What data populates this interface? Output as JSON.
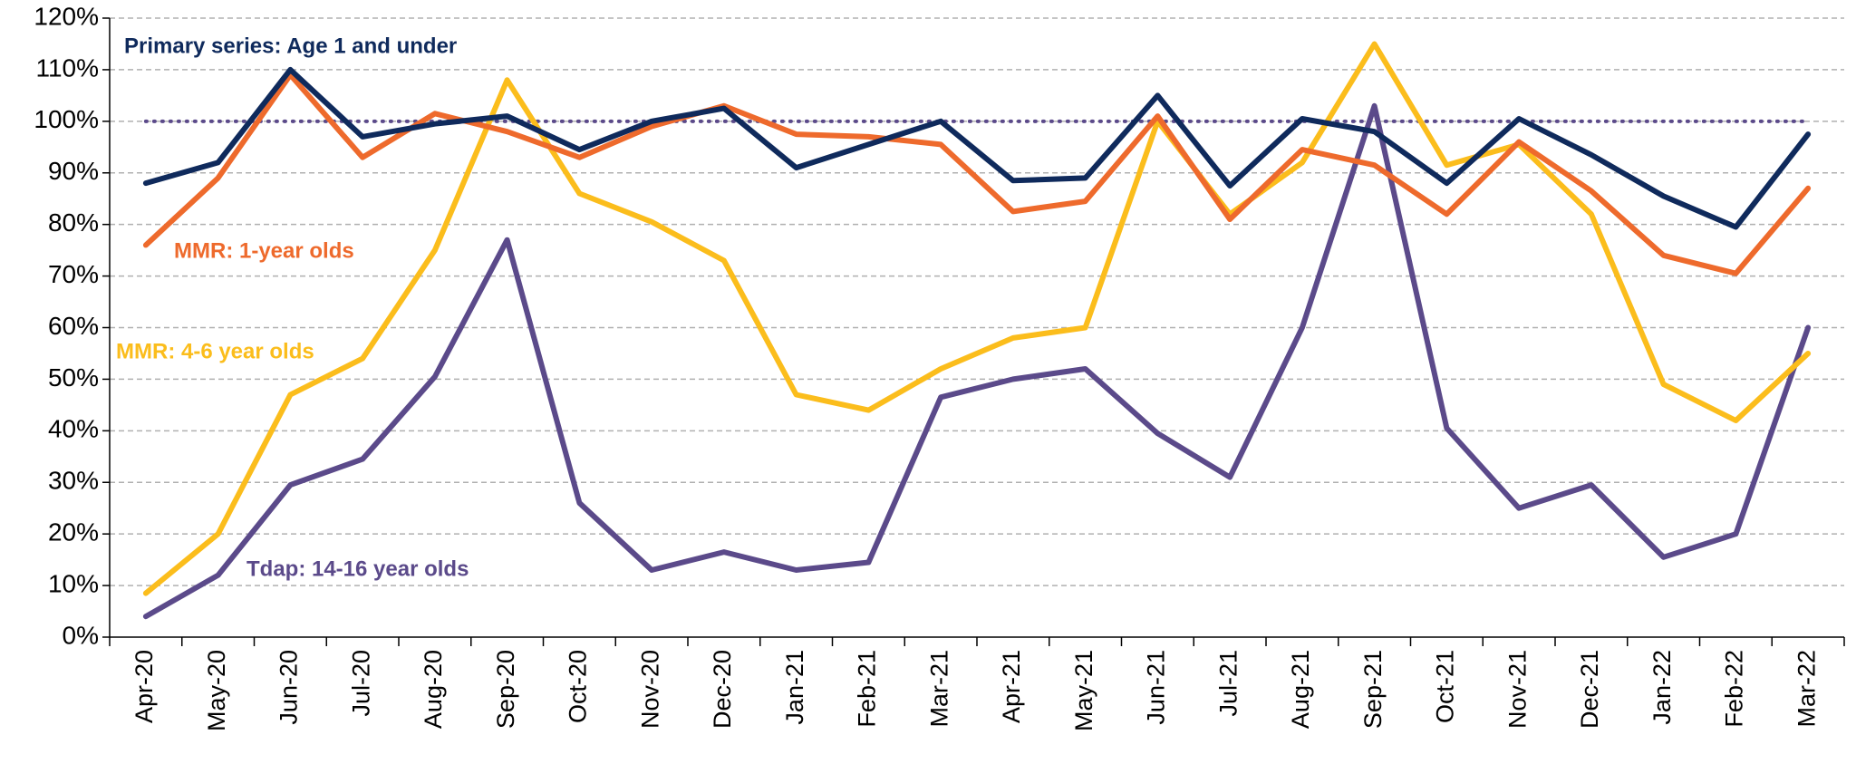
{
  "chart_data": {
    "type": "line",
    "categories": [
      "Apr-20",
      "May-20",
      "Jun-20",
      "Jul-20",
      "Aug-20",
      "Sep-20",
      "Oct-20",
      "Nov-20",
      "Dec-20",
      "Jan-21",
      "Feb-21",
      "Mar-21",
      "Apr-21",
      "May-21",
      "Jun-21",
      "Jul-21",
      "Aug-21",
      "Sep-21",
      "Oct-21",
      "Nov-21",
      "Dec-21",
      "Jan-22",
      "Feb-22",
      "Mar-22"
    ],
    "series": [
      {
        "name": "Primary series: Age 1 and under",
        "color": "#0f2a5c",
        "values": [
          88,
          92,
          110,
          97,
          99.5,
          101,
          94.5,
          100,
          102.5,
          91,
          95.5,
          100,
          88.5,
          89,
          105,
          87.5,
          100.5,
          98,
          88,
          100.5,
          93.5,
          85.5,
          79.5,
          97.5
        ]
      },
      {
        "name": "MMR: 1-year olds",
        "color": "#ee6a2c",
        "values": [
          76,
          89,
          109,
          93,
          101.5,
          98,
          93,
          99,
          103,
          97.5,
          97,
          95.5,
          82.5,
          84.5,
          101,
          81,
          94.5,
          91.5,
          82,
          96,
          86.5,
          74,
          70.5,
          87
        ]
      },
      {
        "name": "MMR: 4-6 year olds",
        "color": "#fbbd1c",
        "values": [
          8.5,
          20,
          47,
          54,
          75,
          108,
          86,
          80.5,
          73,
          47,
          44,
          52,
          58,
          60,
          100,
          82,
          92,
          115,
          91.5,
          95.5,
          82,
          49,
          42,
          55
        ]
      },
      {
        "name": "Tdap: 14-16 year olds",
        "color": "#5b4a8a",
        "values": [
          4,
          12,
          29.5,
          34.5,
          50.5,
          77,
          26,
          13,
          16.5,
          13,
          14.5,
          46.5,
          50,
          52,
          39.5,
          31,
          60,
          103,
          40.5,
          25,
          29.5,
          15.5,
          20,
          60
        ]
      }
    ],
    "reference_line": {
      "value": 100,
      "color": "#5b4a8a"
    },
    "ylim": [
      0,
      120
    ],
    "yticks": [
      {
        "value": 0,
        "label": "0%"
      },
      {
        "value": 10,
        "label": "10%"
      },
      {
        "value": 20,
        "label": "20%"
      },
      {
        "value": 30,
        "label": "30%"
      },
      {
        "value": 40,
        "label": "40%"
      },
      {
        "value": 50,
        "label": "50%"
      },
      {
        "value": 60,
        "label": "60%"
      },
      {
        "value": 70,
        "label": "70%"
      },
      {
        "value": 80,
        "label": "80%"
      },
      {
        "value": 90,
        "label": "90%"
      },
      {
        "value": 100,
        "label": "100%"
      },
      {
        "value": 110,
        "label": "110%"
      },
      {
        "value": 120,
        "label": "120%"
      }
    ],
    "grid": true
  }
}
